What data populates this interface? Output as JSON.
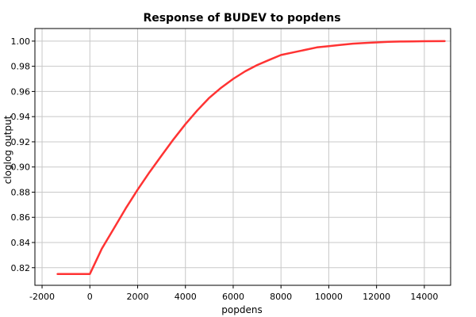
{
  "chart_data": {
    "type": "line",
    "title": "Response of BUDEV to popdens",
    "xlabel": "popdens",
    "ylabel": "cloglog output",
    "xlim": [
      -2300,
      15100
    ],
    "ylim": [
      0.806,
      1.01
    ],
    "xticks": [
      -2000,
      0,
      2000,
      4000,
      6000,
      8000,
      10000,
      12000,
      14000
    ],
    "xtick_labels": [
      "-2000",
      "0",
      "2000",
      "4000",
      "6000",
      "8000",
      "10000",
      "12000",
      "14000"
    ],
    "yticks": [
      0.82,
      0.84,
      0.86,
      0.88,
      0.9,
      0.92,
      0.94,
      0.96,
      0.98,
      1.0
    ],
    "ytick_labels": [
      "0.82",
      "0.84",
      "0.86",
      "0.88",
      "0.90",
      "0.92",
      "0.94",
      "0.96",
      "0.98",
      "1.00"
    ],
    "grid": true,
    "series": [
      {
        "color": "#ff3333",
        "x": [
          -1350,
          0,
          500,
          1000,
          1500,
          2000,
          2500,
          3000,
          3500,
          4000,
          4500,
          5000,
          5500,
          6000,
          6500,
          7000,
          7500,
          8000,
          8500,
          9000,
          9500,
          10000,
          10500,
          11000,
          11500,
          12000,
          12500,
          13000,
          13500,
          14000,
          14850
        ],
        "y": [
          0.815,
          0.815,
          0.835,
          0.851,
          0.867,
          0.882,
          0.896,
          0.909,
          0.922,
          0.934,
          0.945,
          0.955,
          0.963,
          0.97,
          0.976,
          0.981,
          0.985,
          0.989,
          0.991,
          0.993,
          0.995,
          0.996,
          0.997,
          0.998,
          0.9985,
          0.999,
          0.9995,
          0.9997,
          0.9998,
          0.9999,
          1.0
        ]
      }
    ]
  }
}
